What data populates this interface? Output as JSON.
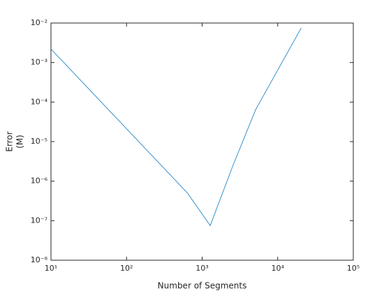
{
  "chart_data": {
    "type": "line",
    "xlabel": "Number of Segments",
    "ylabel": [
      "Error",
      "(M)"
    ],
    "x": [
      10,
      640,
      1280,
      2560,
      5120,
      20480
    ],
    "series": [
      {
        "name": "Error",
        "color": "#0072bd",
        "values": [
          0.0022,
          5e-07,
          7.5e-08,
          2.5e-06,
          6.5e-05,
          0.0075
        ]
      }
    ],
    "xscale": "log",
    "yscale": "log",
    "xlim": [
      10,
      100000
    ],
    "ylim": [
      1e-08,
      0.01
    ],
    "xticks": [
      {
        "value": 10,
        "label": "10¹"
      },
      {
        "value": 100,
        "label": "10²"
      },
      {
        "value": 1000,
        "label": "10³"
      },
      {
        "value": 10000,
        "label": "10⁴"
      },
      {
        "value": 100000,
        "label": "10⁵"
      }
    ],
    "yticks": [
      {
        "value": 1e-08,
        "label": "10⁻⁸"
      },
      {
        "value": 1e-07,
        "label": "10⁻⁷"
      },
      {
        "value": 1e-06,
        "label": "10⁻⁶"
      },
      {
        "value": 1e-05,
        "label": "10⁻⁵"
      },
      {
        "value": 0.0001,
        "label": "10⁻⁴"
      },
      {
        "value": 0.001,
        "label": "10⁻³"
      },
      {
        "value": 0.01,
        "label": "10⁻²"
      }
    ],
    "grid": false
  }
}
